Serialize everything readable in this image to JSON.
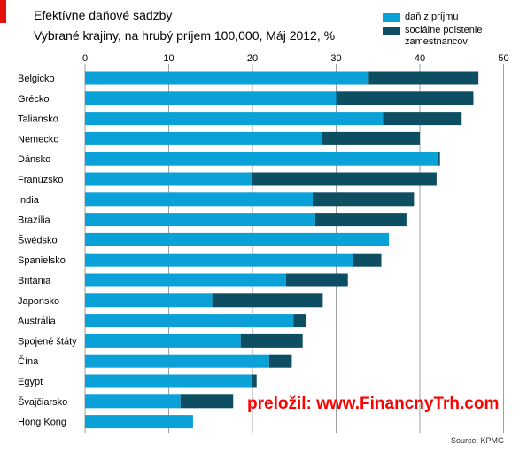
{
  "header": {
    "title": "Efektívne daňové sadzby",
    "subtitle": "Vybrané krajiny, na hrubý príjem 100,000, Máj 2012, %"
  },
  "watermark": "preložil: www.FinancnyTrh.com",
  "source": "Source: KPMG",
  "colors": {
    "accent": "#e3120b",
    "series1": "#0aa0d8",
    "series2": "#0d4e63",
    "grid": "#9aa0a6"
  },
  "chart_data": {
    "type": "bar",
    "orientation": "horizontal",
    "stacked": true,
    "title": "Efektívne daňové sadzby",
    "subtitle": "Vybrané krajiny, na hrubý príjem 100,000, Máj 2012, %",
    "xlim": [
      0,
      50
    ],
    "xticks": [
      "0",
      "10",
      "20",
      "30",
      "40",
      "50"
    ],
    "grid": true,
    "legend_position": "top-right",
    "categories": [
      "Belgicko",
      "Grécko",
      "Taliansko",
      "Nemecko",
      "Dánsko",
      "Franúzsko",
      "India",
      "Brazília",
      "Šwédsko",
      "Spanielsko",
      "Británia",
      "Japonsko",
      "Austrália",
      "Spojené štáty",
      "Čína",
      "Egypt",
      "Švajčiarsko",
      "Hong Kong"
    ],
    "series": [
      {
        "name": "daň z príjmu",
        "color": "#0aa0d8",
        "values": [
          33.9,
          30.0,
          35.6,
          28.3,
          42.1,
          20.0,
          27.2,
          27.5,
          36.3,
          32.0,
          24.0,
          15.2,
          24.9,
          18.6,
          22.0,
          20.0,
          11.4,
          12.9
        ]
      },
      {
        "name": "sociálne poistenie zamestnancov",
        "color": "#0d4e63",
        "values": [
          13.1,
          16.4,
          9.4,
          11.7,
          0.3,
          22.0,
          12.1,
          10.9,
          0.0,
          3.4,
          7.4,
          13.2,
          1.5,
          7.4,
          2.7,
          0.5,
          6.3,
          0.0
        ]
      }
    ]
  }
}
